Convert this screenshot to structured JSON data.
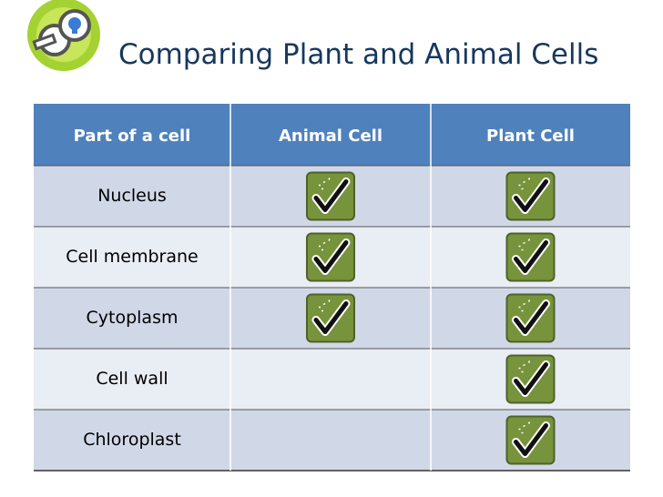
{
  "title": "Comparing Plant and Animal Cells",
  "table": {
    "header": [
      "Part of a cell",
      "Animal Cell",
      "Plant Cell"
    ],
    "rows": [
      {
        "part": "Nucleus",
        "animal": true,
        "plant": true
      },
      {
        "part": "Cell membrane",
        "animal": true,
        "plant": true
      },
      {
        "part": "Cytoplasm",
        "animal": true,
        "plant": true
      },
      {
        "part": "Cell wall",
        "animal": false,
        "plant": true
      },
      {
        "part": "Chloroplast",
        "animal": false,
        "plant": true
      }
    ]
  }
}
